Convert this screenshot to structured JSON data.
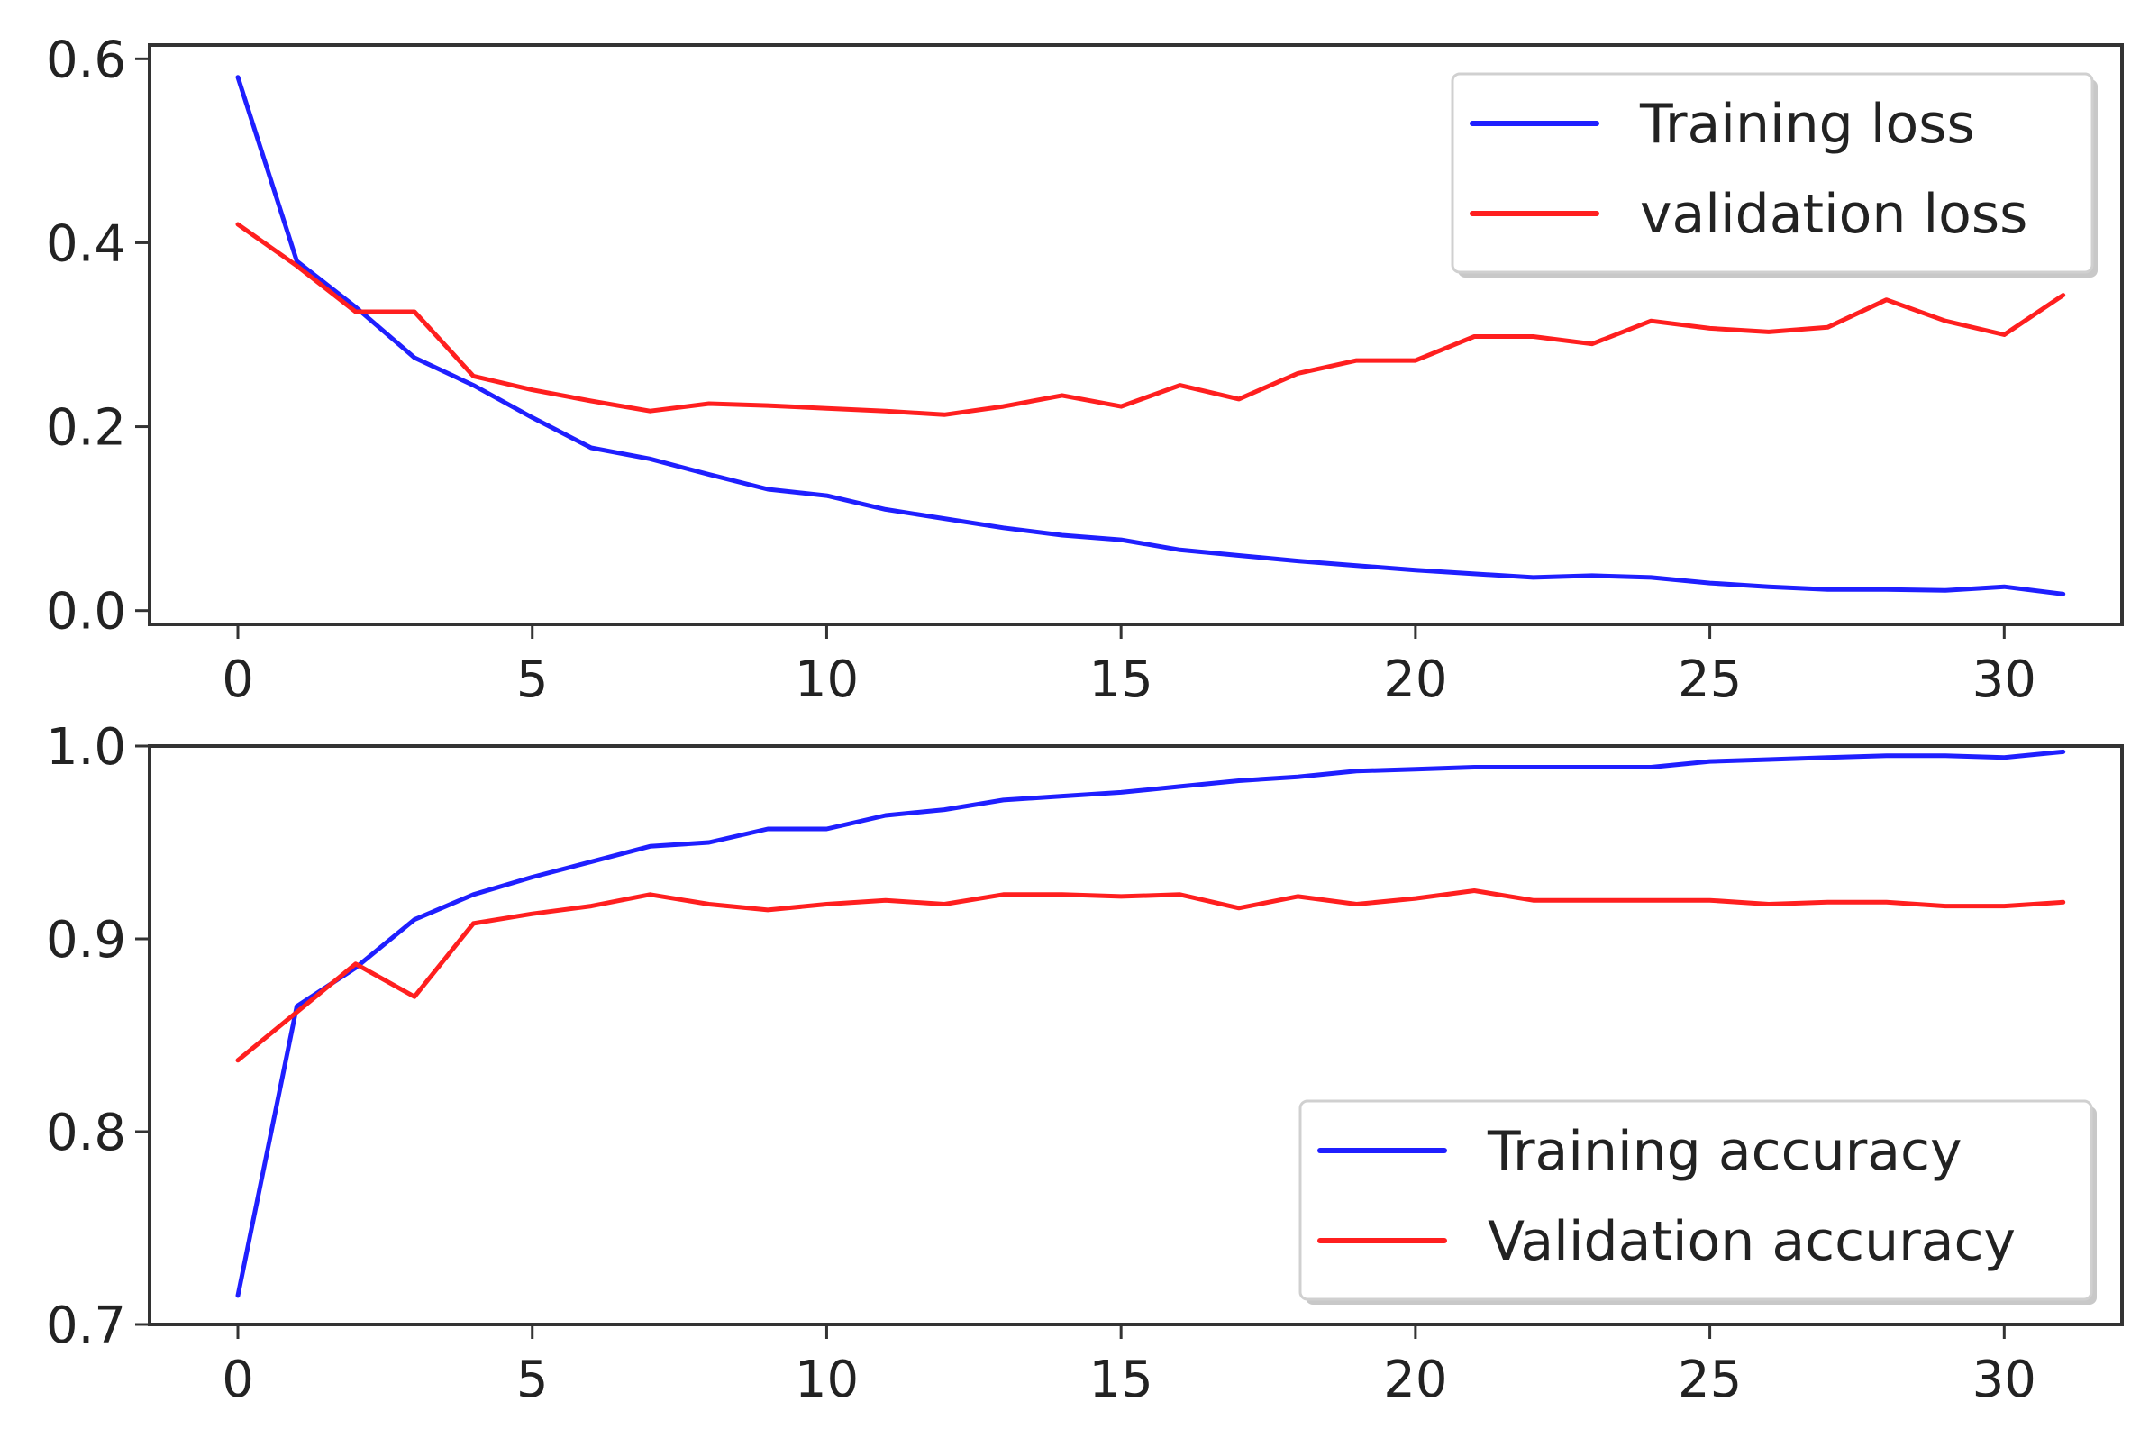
{
  "chart_data": [
    {
      "type": "line",
      "title": "",
      "xlabel": "",
      "ylabel": "",
      "xlim": [
        -1.5,
        32
      ],
      "ylim": [
        -0.015,
        0.615
      ],
      "x_ticks": [
        0,
        5,
        10,
        15,
        20,
        25,
        30
      ],
      "x_tick_labels": [
        "0",
        "5",
        "10",
        "15",
        "20",
        "25",
        "30"
      ],
      "y_ticks": [
        0.0,
        0.2,
        0.4,
        0.6
      ],
      "y_tick_labels": [
        "0.0",
        "0.2",
        "0.4",
        "0.6"
      ],
      "grid": false,
      "legend_position": "top-right",
      "x": [
        0,
        1,
        2,
        3,
        4,
        5,
        6,
        7,
        8,
        9,
        10,
        11,
        12,
        13,
        14,
        15,
        16,
        17,
        18,
        19,
        20,
        21,
        22,
        23,
        24,
        25,
        26,
        27,
        28,
        29,
        30,
        31
      ],
      "series": [
        {
          "name": "Training loss",
          "color": "#1f1fff",
          "values": [
            0.58,
            0.38,
            0.33,
            0.275,
            0.245,
            0.21,
            0.177,
            0.165,
            0.148,
            0.132,
            0.125,
            0.11,
            0.1,
            0.09,
            0.082,
            0.077,
            0.066,
            0.06,
            0.054,
            0.049,
            0.044,
            0.04,
            0.036,
            0.038,
            0.036,
            0.03,
            0.026,
            0.023,
            0.023,
            0.022,
            0.026,
            0.018
          ]
        },
        {
          "name": "validation loss",
          "color": "#ff1f1f",
          "values": [
            0.42,
            0.375,
            0.325,
            0.325,
            0.255,
            0.24,
            0.228,
            0.217,
            0.225,
            0.223,
            0.22,
            0.217,
            0.213,
            0.222,
            0.234,
            0.222,
            0.245,
            0.23,
            0.258,
            0.272,
            0.272,
            0.298,
            0.298,
            0.29,
            0.315,
            0.307,
            0.303,
            0.308,
            0.338,
            0.315,
            0.3,
            0.343
          ]
        }
      ]
    },
    {
      "type": "line",
      "title": "",
      "xlabel": "",
      "ylabel": "",
      "xlim": [
        -1.5,
        32
      ],
      "ylim": [
        0.7,
        1.0
      ],
      "x_ticks": [
        0,
        5,
        10,
        15,
        20,
        25,
        30
      ],
      "x_tick_labels": [
        "0",
        "5",
        "10",
        "15",
        "20",
        "25",
        "30"
      ],
      "y_ticks": [
        0.7,
        0.8,
        0.9,
        1.0
      ],
      "y_tick_labels": [
        "0.7",
        "0.8",
        "0.9",
        "1.0"
      ],
      "grid": false,
      "legend_position": "bottom-right",
      "x": [
        0,
        1,
        2,
        3,
        4,
        5,
        6,
        7,
        8,
        9,
        10,
        11,
        12,
        13,
        14,
        15,
        16,
        17,
        18,
        19,
        20,
        21,
        22,
        23,
        24,
        25,
        26,
        27,
        28,
        29,
        30,
        31
      ],
      "series": [
        {
          "name": "Training accuracy",
          "color": "#1f1fff",
          "values": [
            0.715,
            0.865,
            0.885,
            0.91,
            0.923,
            0.932,
            0.94,
            0.948,
            0.95,
            0.957,
            0.957,
            0.964,
            0.967,
            0.972,
            0.974,
            0.976,
            0.979,
            0.982,
            0.984,
            0.987,
            0.988,
            0.989,
            0.989,
            0.989,
            0.989,
            0.992,
            0.993,
            0.994,
            0.995,
            0.995,
            0.994,
            0.997
          ]
        },
        {
          "name": "Validation accuracy",
          "color": "#ff1f1f",
          "values": [
            0.837,
            0.862,
            0.887,
            0.87,
            0.908,
            0.913,
            0.917,
            0.923,
            0.918,
            0.915,
            0.918,
            0.92,
            0.918,
            0.923,
            0.923,
            0.922,
            0.923,
            0.916,
            0.922,
            0.918,
            0.921,
            0.925,
            0.92,
            0.92,
            0.92,
            0.92,
            0.918,
            0.919,
            0.919,
            0.917,
            0.917,
            0.919
          ]
        }
      ]
    }
  ]
}
